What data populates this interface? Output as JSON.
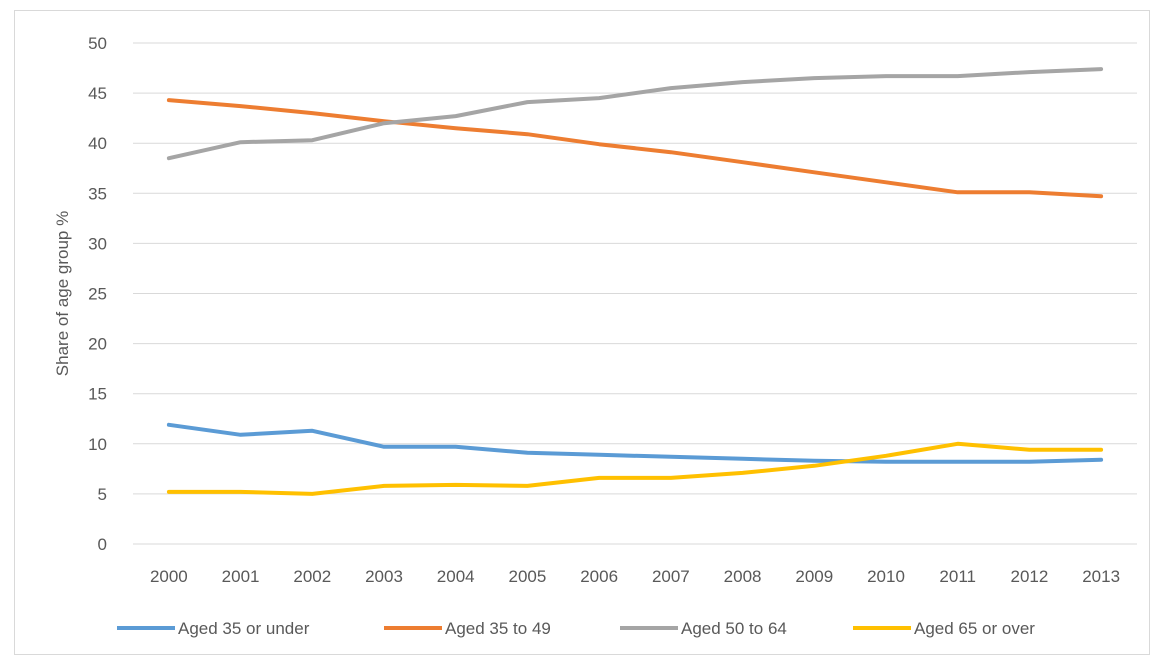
{
  "chart_data": {
    "type": "line",
    "title": "",
    "xlabel": "",
    "ylabel": "Share of age group %",
    "ylim": [
      0,
      50
    ],
    "yticks": [
      0,
      5,
      10,
      15,
      20,
      25,
      30,
      35,
      40,
      45,
      50
    ],
    "grid": true,
    "legend_position": "bottom",
    "categories": [
      "2000",
      "2001",
      "2002",
      "2003",
      "2004",
      "2005",
      "2006",
      "2007",
      "2008",
      "2009",
      "2010",
      "2011",
      "2012",
      "2013"
    ],
    "series": [
      {
        "name": "Aged 35 or under",
        "color": "#5b9bd5",
        "values": [
          11.9,
          10.9,
          11.3,
          9.7,
          9.7,
          9.1,
          8.9,
          8.7,
          8.5,
          8.3,
          8.2,
          8.2,
          8.2,
          8.4
        ]
      },
      {
        "name": "Aged 35 to 49",
        "color": "#ed7d31",
        "values": [
          44.3,
          43.7,
          43.0,
          42.2,
          41.5,
          40.9,
          39.9,
          39.1,
          38.1,
          37.1,
          36.1,
          35.1,
          35.1,
          34.7
        ]
      },
      {
        "name": "Aged 50 to 64",
        "color": "#a5a5a5",
        "values": [
          38.5,
          40.1,
          40.3,
          42.0,
          42.7,
          44.1,
          44.5,
          45.5,
          46.1,
          46.5,
          46.7,
          46.7,
          47.1,
          47.4
        ]
      },
      {
        "name": "Aged 65 or over",
        "color": "#ffc000",
        "values": [
          5.2,
          5.2,
          5.0,
          5.8,
          5.9,
          5.8,
          6.6,
          6.6,
          7.1,
          7.8,
          8.8,
          10.0,
          9.4,
          9.4
        ]
      }
    ]
  }
}
